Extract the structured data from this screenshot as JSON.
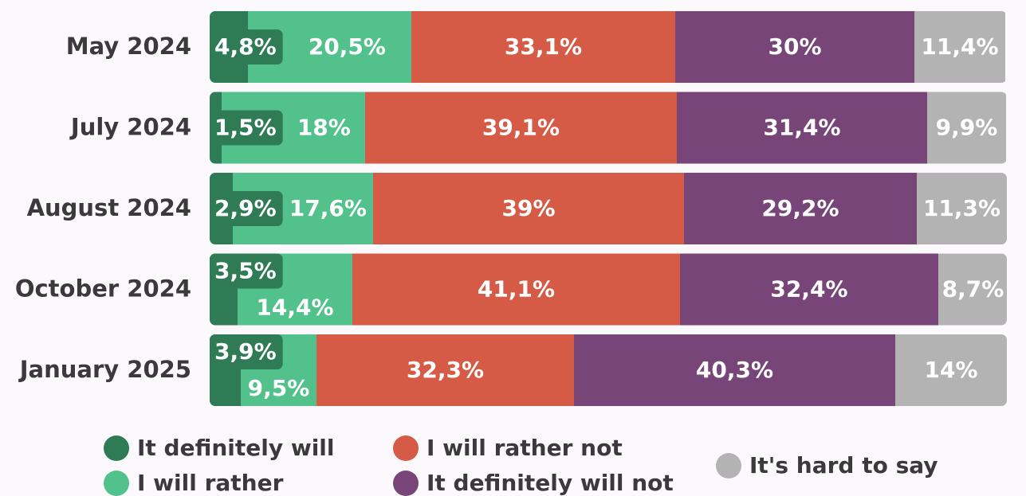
{
  "chart_data": {
    "type": "stacked-bar-horizontal",
    "categories": [
      "May 2024",
      "July 2024",
      "August 2024",
      "October 2024",
      "January 2025"
    ],
    "xlim": [
      0,
      100
    ],
    "series": [
      {
        "name": "It definitely will",
        "color": "#2e7b55",
        "values": [
          4.8,
          1.5,
          2.9,
          3.5,
          3.9
        ],
        "value_labels": [
          "4,8%",
          "1,5%",
          "2,9%",
          "3,5%",
          "3,9%"
        ]
      },
      {
        "name": "I will rather",
        "color": "#52c18b",
        "values": [
          20.5,
          18,
          17.6,
          14.4,
          9.5
        ],
        "value_labels": [
          "20,5%",
          "18%",
          "17,6%",
          "14,4%",
          "9,5%"
        ]
      },
      {
        "name": "I will rather not",
        "color": "#d55b47",
        "values": [
          33.1,
          39.1,
          39,
          41.1,
          32.3
        ],
        "value_labels": [
          "33,1%",
          "39,1%",
          "39%",
          "41,1%",
          "32,3%"
        ]
      },
      {
        "name": "It definitely will not",
        "color": "#774577",
        "values": [
          30,
          31.4,
          29.2,
          32.4,
          40.3
        ],
        "value_labels": [
          "30%",
          "31,4%",
          "29,2%",
          "32,4%",
          "40,3%"
        ]
      },
      {
        "name": "It's hard to say",
        "color": "#b3b3b3",
        "values": [
          11.4,
          9.9,
          11.3,
          8.7,
          14
        ],
        "value_labels": [
          "11,4%",
          "9,9%",
          "11,3%",
          "8,7%",
          "14%"
        ]
      }
    ]
  }
}
